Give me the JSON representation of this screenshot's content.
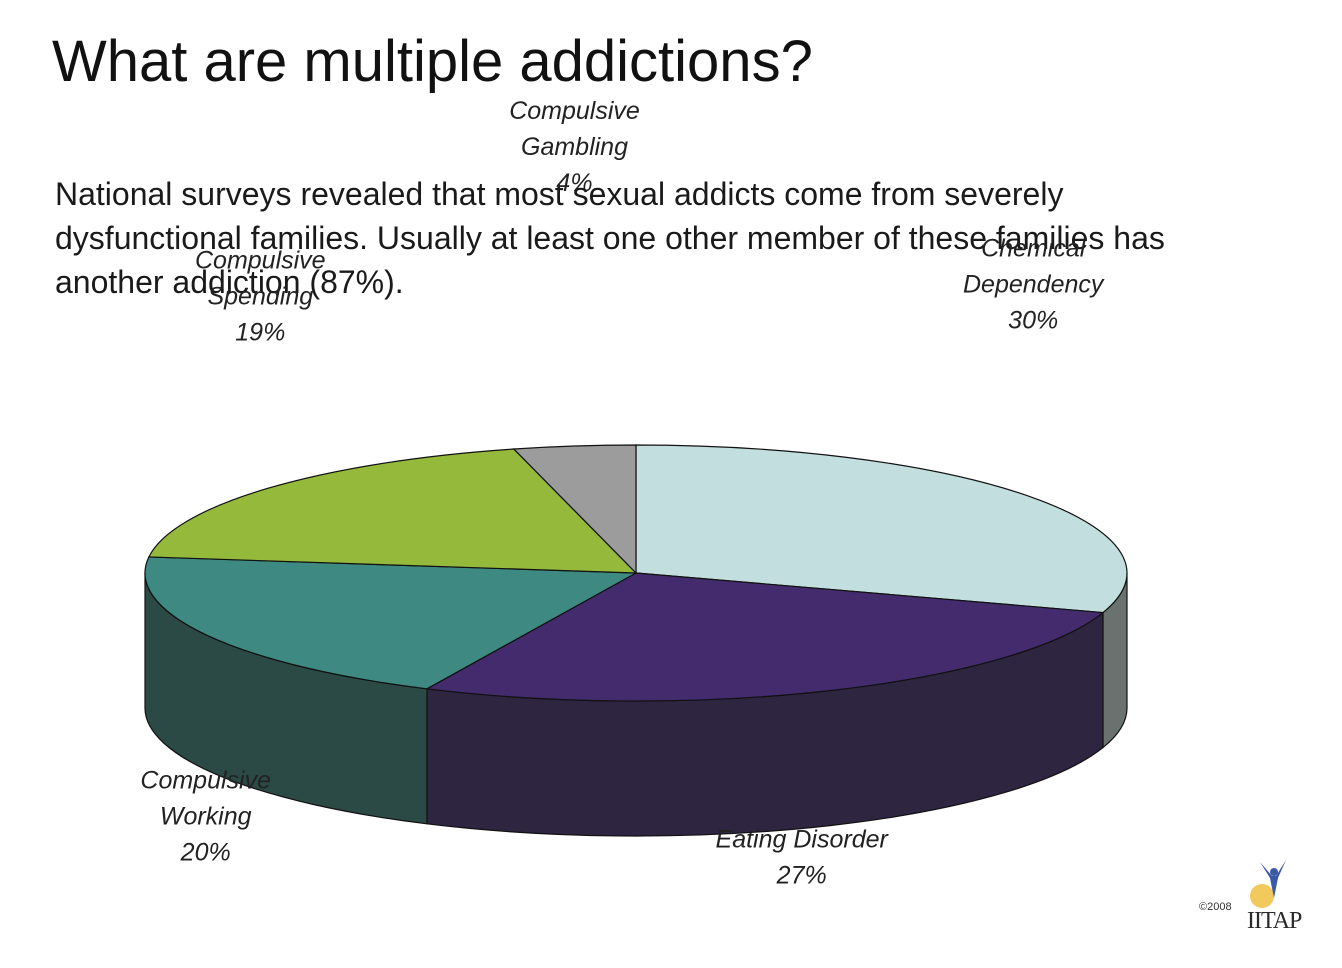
{
  "slide": {
    "title": "What are multiple addictions?",
    "body": "National surveys revealed that most sexual addicts come from severely dysfunctional families. Usually at least one other member of these families has another addiction (87%)."
  },
  "chart_data": {
    "type": "pie",
    "three_d": true,
    "title": "",
    "slices": [
      {
        "label": [
          "Chemical",
          "Dependency"
        ],
        "value": 30,
        "value_label": "30%",
        "color": "#c2dede",
        "side_color": "#6a7270"
      },
      {
        "label": [
          "Eating Disorder"
        ],
        "value": 27,
        "value_label": "27%",
        "color": "#432b6e",
        "side_color": "#2e2540"
      },
      {
        "label": [
          "Compulsive",
          "Working"
        ],
        "value": 20,
        "value_label": "20%",
        "color": "#3e8a82",
        "side_color": "#2c4a45"
      },
      {
        "label": [
          "Compulsive",
          "Spending"
        ],
        "value": 19,
        "value_label": "19%",
        "color": "#94b93b",
        "side_color": "#5b7124"
      },
      {
        "label": [
          "Compulsive",
          "Gambling"
        ],
        "value": 4,
        "value_label": "4%",
        "color": "#9c9c9c",
        "side_color": "#6a6a6a"
      }
    ],
    "start_angle": "12 o'clock",
    "direction": "clockwise"
  },
  "branding": {
    "copyright": "©2008",
    "logo_text": "IITAP",
    "logo_icon": "person-arms-raised-icon",
    "logo_colors": {
      "figure": "#3b5aa6",
      "sun": "#f0c040"
    }
  }
}
